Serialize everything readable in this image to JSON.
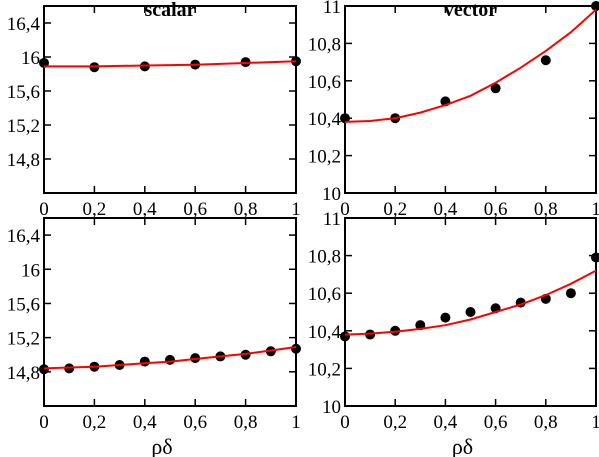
{
  "chart_data": [
    {
      "type": "scatter",
      "title": "scalar",
      "xlabel": "",
      "ylabel": "",
      "xlim": [
        0,
        1
      ],
      "ylim": [
        14.4,
        16.6
      ],
      "x_ticks": [
        "0",
        "0,2",
        "0,4",
        "0,6",
        "0,8",
        "1"
      ],
      "x_tick_values": [
        0,
        0.2,
        0.4,
        0.6,
        0.8,
        1
      ],
      "y_ticks": [
        "14,8",
        "15,2",
        "15,6",
        "16",
        "16,4"
      ],
      "y_tick_values": [
        14.8,
        15.2,
        15.6,
        16.0,
        16.4
      ],
      "series": [
        {
          "kind": "points",
          "color": "#000000",
          "x": [
            0,
            0.2,
            0.4,
            0.6,
            0.8,
            1
          ],
          "y": [
            15.93,
            15.88,
            15.89,
            15.91,
            15.94,
            15.95
          ]
        },
        {
          "kind": "line",
          "color": "#ff0000",
          "x": [
            0,
            0.2,
            0.4,
            0.6,
            0.8,
            1
          ],
          "y": [
            15.89,
            15.89,
            15.9,
            15.91,
            15.93,
            15.95
          ]
        }
      ]
    },
    {
      "type": "scatter",
      "title": "vector",
      "xlabel": "",
      "ylabel": "",
      "xlim": [
        0,
        1
      ],
      "ylim": [
        10,
        11
      ],
      "x_ticks": [
        "0",
        "0,2",
        "0,4",
        "0,6",
        "0,8",
        "1"
      ],
      "x_tick_values": [
        0,
        0.2,
        0.4,
        0.6,
        0.8,
        1
      ],
      "y_ticks": [
        "10",
        "10,2",
        "10,4",
        "10,6",
        "10,8",
        "11"
      ],
      "y_tick_values": [
        10,
        10.2,
        10.4,
        10.6,
        10.8,
        11
      ],
      "series": [
        {
          "kind": "points",
          "color": "#000000",
          "x": [
            0,
            0.2,
            0.4,
            0.6,
            0.8,
            1
          ],
          "y": [
            10.4,
            10.4,
            10.49,
            10.56,
            10.71,
            11.0
          ]
        },
        {
          "kind": "line",
          "color": "#ff0000",
          "x": [
            0,
            0.1,
            0.2,
            0.3,
            0.4,
            0.5,
            0.6,
            0.7,
            0.8,
            0.9,
            1
          ],
          "y": [
            10.38,
            10.385,
            10.4,
            10.43,
            10.47,
            10.52,
            10.59,
            10.67,
            10.76,
            10.86,
            10.98
          ]
        }
      ]
    },
    {
      "type": "scatter",
      "title": "",
      "xlabel": "ρδ",
      "ylabel": "",
      "xlim": [
        0,
        1
      ],
      "ylim": [
        14.4,
        16.6
      ],
      "x_ticks": [
        "0",
        "0,2",
        "0,4",
        "0,6",
        "0,8",
        "1"
      ],
      "x_tick_values": [
        0,
        0.2,
        0.4,
        0.6,
        0.8,
        1
      ],
      "y_ticks": [
        "14,8",
        "15,2",
        "15,6",
        "16",
        "16,4"
      ],
      "y_tick_values": [
        14.8,
        15.2,
        15.6,
        16.0,
        16.4
      ],
      "series": [
        {
          "kind": "points",
          "color": "#000000",
          "x": [
            0,
            0.1,
            0.2,
            0.3,
            0.4,
            0.5,
            0.6,
            0.7,
            0.8,
            0.9,
            1
          ],
          "y": [
            14.83,
            14.84,
            14.86,
            14.88,
            14.92,
            14.94,
            14.96,
            14.98,
            15.0,
            15.04,
            15.07
          ]
        },
        {
          "kind": "line",
          "color": "#ff0000",
          "x": [
            0,
            0.1,
            0.2,
            0.3,
            0.4,
            0.5,
            0.6,
            0.7,
            0.8,
            0.9,
            1
          ],
          "y": [
            14.84,
            14.85,
            14.86,
            14.88,
            14.9,
            14.92,
            14.95,
            14.98,
            15.01,
            15.05,
            15.09
          ]
        }
      ]
    },
    {
      "type": "scatter",
      "title": "",
      "xlabel": "ρδ",
      "ylabel": "",
      "xlim": [
        0,
        1
      ],
      "ylim": [
        10,
        11
      ],
      "x_ticks": [
        "0",
        "0,2",
        "0,4",
        "0,6",
        "0,8",
        "1"
      ],
      "x_tick_values": [
        0,
        0.2,
        0.4,
        0.6,
        0.8,
        1
      ],
      "y_ticks": [
        "10",
        "10,2",
        "10,4",
        "10,6",
        "10,8",
        "11"
      ],
      "y_tick_values": [
        10,
        10.2,
        10.4,
        10.6,
        10.8,
        11
      ],
      "series": [
        {
          "kind": "points",
          "color": "#000000",
          "x": [
            0,
            0.1,
            0.2,
            0.3,
            0.4,
            0.5,
            0.6,
            0.7,
            0.8,
            0.9,
            1
          ],
          "y": [
            10.37,
            10.38,
            10.4,
            10.43,
            10.47,
            10.5,
            10.52,
            10.55,
            10.57,
            10.6,
            10.79
          ]
        },
        {
          "kind": "line",
          "color": "#ff0000",
          "x": [
            0,
            0.1,
            0.2,
            0.3,
            0.4,
            0.5,
            0.6,
            0.7,
            0.8,
            0.9,
            1
          ],
          "y": [
            10.38,
            10.385,
            10.395,
            10.41,
            10.43,
            10.46,
            10.5,
            10.54,
            10.59,
            10.65,
            10.72
          ]
        }
      ]
    }
  ]
}
